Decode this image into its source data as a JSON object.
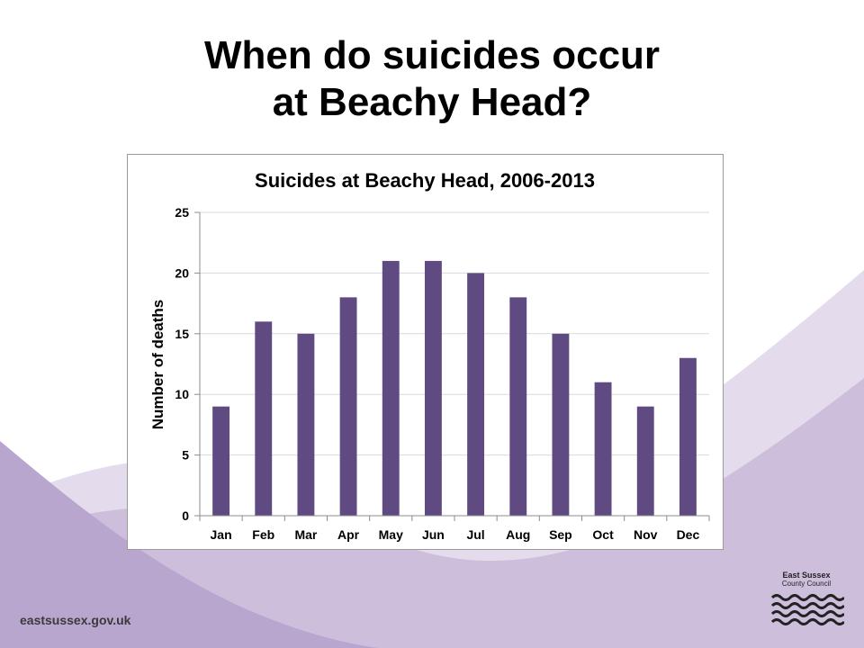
{
  "slide": {
    "title_line1": "When do suicides occur",
    "title_line2": "at Beachy Head?",
    "footer_url": "eastsussex.gov.uk",
    "logo": {
      "name_line1": "East Sussex",
      "name_line2": "County Council",
      "icon": "waves-logo-icon"
    }
  },
  "colors": {
    "bar": "#5f4a82",
    "wave_light": "#e4dcec",
    "wave_mid": "#cdbfdc",
    "wave_dark": "#b9a6cf"
  },
  "chart_data": {
    "type": "bar",
    "title": "Suicides at Beachy Head, 2006-2013",
    "xlabel": "",
    "ylabel": "Number of deaths",
    "categories": [
      "Jan",
      "Feb",
      "Mar",
      "Apr",
      "May",
      "Jun",
      "Jul",
      "Aug",
      "Sep",
      "Oct",
      "Nov",
      "Dec"
    ],
    "values": [
      9,
      16,
      15,
      18,
      21,
      21,
      20,
      18,
      15,
      11,
      9,
      13
    ],
    "ylim": [
      0,
      25
    ],
    "yticks": [
      0,
      5,
      10,
      15,
      20,
      25
    ],
    "grid": true,
    "legend": "none"
  }
}
